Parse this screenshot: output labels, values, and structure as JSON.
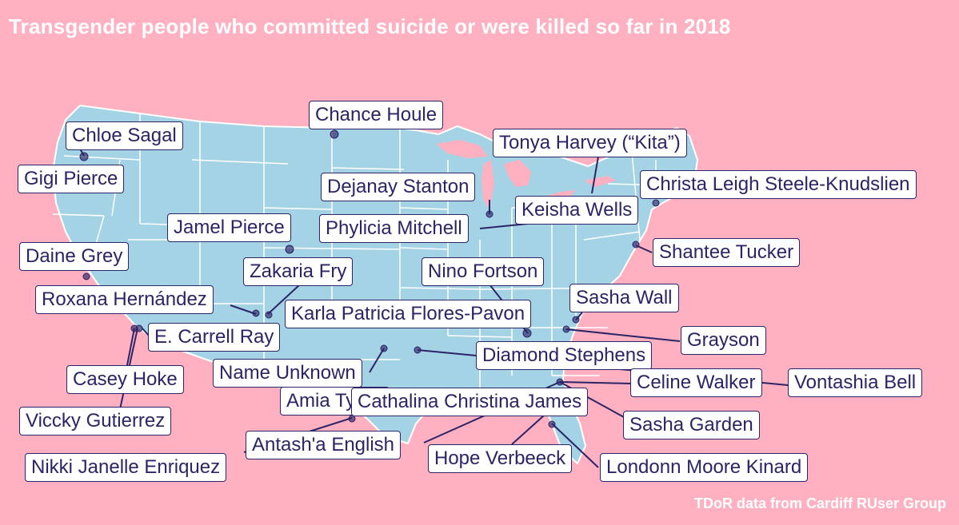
{
  "title": "Transgender people who committed suicide or were killed so far in 2018",
  "caption": "TDoR data from Cardiff RUser Group",
  "colors": {
    "background": "#ffb0c1",
    "land": "#a3d3e5",
    "borders": "#ffffff",
    "points_and_lines": "#2b2466"
  },
  "victims": [
    "Chloe Sagal",
    "Gigi Pierce",
    "Chance Houle",
    "Tonya Harvey (“Kita”)",
    "Dejanay Stanton",
    "Christa Leigh Steele-Knudslien",
    "Keisha Wells",
    "Jamel Pierce",
    "Phylicia Mitchell",
    "Shantee Tucker",
    "Daine Grey",
    "Zakaria Fry",
    "Nino Fortson",
    "Roxana Hernández",
    "Sasha Wall",
    "Karla Patricia Flores-Pavon",
    "E. Carrell Ray",
    "Grayson",
    "Diamond Stephens",
    "Name Unknown",
    "Casey Hoke",
    "Celine Walker",
    "Vontashia Bell",
    "Amia Tyrae",
    "Cathalina Christina James",
    "Viccky Gutierrez",
    "Sasha Garden",
    "Antash'a English",
    "Nikki Janelle Enriquez",
    "Hope Verbeeck",
    "Londonn Moore Kinard"
  ]
}
